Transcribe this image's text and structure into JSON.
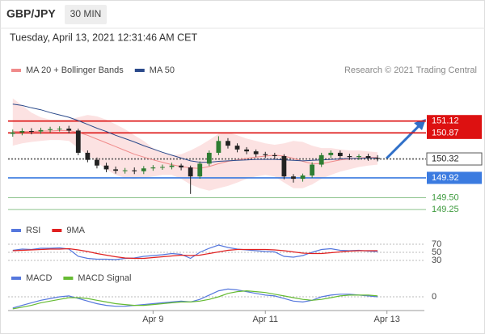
{
  "header": {
    "pair": "GBP/JPY",
    "timeframe": "30 MIN",
    "datetime": "Tuesday, April 13, 2021 12:31:46 AM CET"
  },
  "chart_data": [
    {
      "type": "candlestick",
      "source": "Research © 2021 Trading Central",
      "xlim": [
        -0.5,
        44
      ],
      "ylim": [
        149.03,
        151.97
      ],
      "candle_colors": {
        "up": "#2e7d32",
        "down": "#222222"
      },
      "ohlc": {
        "open": [
          150.85,
          150.88,
          150.91,
          150.9,
          150.93,
          150.95,
          150.96,
          150.92,
          150.45,
          150.3,
          150.18,
          150.1,
          150.07,
          150.08,
          150.06,
          150.12,
          150.14,
          150.15,
          150.18,
          150.14,
          149.95,
          150.22,
          150.45,
          150.7,
          150.6,
          150.52,
          150.48,
          150.42,
          150.4,
          150.38,
          149.95,
          149.9,
          149.97,
          150.2,
          150.4,
          150.45,
          150.38,
          150.36,
          150.38,
          150.34
        ],
        "high": [
          150.94,
          150.97,
          150.97,
          150.98,
          151.0,
          151.01,
          151.02,
          150.96,
          150.5,
          150.35,
          150.24,
          150.16,
          150.13,
          150.14,
          150.17,
          150.19,
          150.2,
          150.24,
          150.22,
          150.18,
          150.27,
          150.5,
          150.8,
          150.76,
          150.65,
          150.57,
          150.52,
          150.47,
          150.45,
          150.42,
          150.0,
          150.01,
          150.25,
          150.45,
          150.5,
          150.5,
          150.43,
          150.42,
          150.43,
          150.4
        ],
        "low": [
          150.79,
          150.82,
          150.84,
          150.85,
          150.88,
          150.9,
          150.86,
          150.4,
          150.25,
          150.12,
          150.04,
          150.01,
          150.01,
          150.0,
          150.0,
          150.07,
          150.09,
          150.1,
          150.08,
          149.58,
          149.9,
          150.17,
          150.4,
          150.54,
          150.46,
          150.42,
          150.36,
          150.34,
          150.32,
          149.89,
          149.82,
          149.84,
          149.92,
          150.15,
          150.34,
          150.32,
          150.3,
          150.3,
          150.28,
          150.27
        ],
        "close": [
          150.88,
          150.91,
          150.9,
          150.93,
          150.95,
          150.96,
          150.92,
          150.45,
          150.3,
          150.18,
          150.1,
          150.07,
          150.08,
          150.06,
          150.12,
          150.14,
          150.15,
          150.18,
          150.14,
          149.95,
          150.22,
          150.45,
          150.7,
          150.6,
          150.52,
          150.48,
          150.42,
          150.4,
          150.38,
          149.95,
          149.9,
          149.97,
          150.2,
          150.4,
          150.45,
          150.38,
          150.36,
          150.38,
          150.34,
          150.32
        ]
      },
      "bands": {
        "color": "#fbd5d5",
        "upper": [
          151.6,
          151.45,
          151.3,
          151.2,
          151.15,
          151.15,
          151.15,
          151.2,
          151.25,
          151.22,
          151.15,
          151.05,
          150.95,
          150.82,
          150.7,
          150.55,
          150.45,
          150.4,
          150.42,
          150.5,
          150.6,
          150.72,
          150.85,
          150.88,
          150.82,
          150.75,
          150.7,
          150.65,
          150.62,
          150.65,
          150.7,
          150.68,
          150.6,
          150.55,
          150.55,
          150.52,
          150.5,
          150.5,
          150.48,
          150.46
        ],
        "lower": [
          150.6,
          150.65,
          150.68,
          150.7,
          150.72,
          150.72,
          150.7,
          150.55,
          150.4,
          150.25,
          150.1,
          149.98,
          149.92,
          149.9,
          149.92,
          149.95,
          149.98,
          149.98,
          149.9,
          149.78,
          149.7,
          149.65,
          149.7,
          149.75,
          149.82,
          149.9,
          149.95,
          149.98,
          149.95,
          149.82,
          149.7,
          149.7,
          149.78,
          149.9,
          149.98,
          150.05,
          150.1,
          150.15,
          150.18,
          150.2
        ]
      },
      "series": [
        {
          "name": "MA 20 + Bollinger Bands",
          "color": "#f08a8a",
          "values": [
            150.9,
            150.9,
            150.9,
            150.91,
            150.91,
            150.92,
            150.92,
            150.88,
            150.82,
            150.74,
            150.66,
            150.58,
            150.5,
            150.42,
            150.36,
            150.3,
            150.25,
            150.2,
            150.16,
            150.13,
            150.12,
            150.16,
            150.22,
            150.27,
            150.3,
            150.33,
            150.36,
            150.38,
            150.4,
            150.38,
            150.33,
            150.27,
            150.22,
            150.22,
            150.26,
            150.3,
            150.32,
            150.34,
            150.35,
            150.35
          ]
        },
        {
          "name": "MA 50",
          "color": "#2b4a8b",
          "values": [
            151.48,
            151.45,
            151.4,
            151.36,
            151.3,
            151.25,
            151.2,
            151.13,
            151.05,
            150.97,
            150.9,
            150.82,
            150.75,
            150.68,
            150.6,
            150.53,
            150.46,
            150.4,
            150.34,
            150.28,
            150.25,
            150.25,
            150.27,
            150.28,
            150.29,
            150.3,
            150.31,
            150.31,
            150.31,
            150.3,
            150.29,
            150.28,
            150.29,
            150.3,
            150.31,
            150.32,
            150.33,
            150.33,
            150.34,
            150.34
          ]
        }
      ],
      "levels": [
        {
          "value": 151.12,
          "label": "151.12",
          "color": "#dd1111",
          "label_style": "filled",
          "dashed": false
        },
        {
          "value": 150.87,
          "label": "150.87",
          "color": "#dd1111",
          "label_style": "filled",
          "dashed": false
        },
        {
          "value": 150.32,
          "label": "150.32",
          "color": "#555555",
          "label_style": "outlined",
          "dashed": true
        },
        {
          "value": 149.92,
          "label": "149.92",
          "color": "#3b7be0",
          "label_style": "filled",
          "dashed": false
        },
        {
          "value": 149.5,
          "label": "149.50",
          "color": "#3c9a3c",
          "label_style": "plain",
          "dashed": false
        },
        {
          "value": 149.25,
          "label": "149.25",
          "color": "#3c9a3c",
          "label_style": "plain",
          "dashed": false
        }
      ]
    },
    {
      "type": "line",
      "xlim": [
        -0.5,
        44
      ],
      "ylim": [
        18,
        82
      ],
      "yticks": [
        30,
        50,
        70
      ],
      "grid": true,
      "series": [
        {
          "name": "RSI",
          "color": "#5577dd",
          "values": [
            55,
            58,
            57,
            60,
            60,
            61,
            58,
            40,
            35,
            33,
            33,
            32,
            35,
            36,
            40,
            42,
            44,
            47,
            45,
            35,
            50,
            60,
            68,
            62,
            58,
            56,
            54,
            52,
            51,
            40,
            38,
            42,
            50,
            57,
            59,
            55,
            54,
            55,
            53,
            52
          ]
        },
        {
          "name": "9MA",
          "color": "#e02020",
          "values": [
            54,
            55,
            56,
            57,
            58,
            58,
            59,
            56,
            52,
            47,
            43,
            39,
            36,
            35,
            35,
            37,
            39,
            41,
            43,
            42,
            43,
            47,
            51,
            55,
            57,
            57,
            57,
            57,
            56,
            54,
            51,
            48,
            47,
            47,
            49,
            51,
            53,
            54,
            54,
            54
          ]
        }
      ]
    },
    {
      "type": "line",
      "xlim": [
        -0.5,
        44
      ],
      "ylim": [
        -0.16,
        0.16
      ],
      "yticks": [
        0
      ],
      "grid": true,
      "xticks": [
        {
          "value": 15,
          "label": "Apr 9"
        },
        {
          "value": 27,
          "label": "Apr 11"
        },
        {
          "value": 40,
          "label": "Apr 13"
        }
      ],
      "series": [
        {
          "name": "MACD",
          "color": "#5577dd",
          "values": [
            -0.13,
            -0.1,
            -0.07,
            -0.04,
            -0.02,
            0.0,
            0.01,
            -0.02,
            -0.05,
            -0.08,
            -0.1,
            -0.11,
            -0.11,
            -0.1,
            -0.09,
            -0.08,
            -0.07,
            -0.06,
            -0.05,
            -0.06,
            -0.03,
            0.02,
            0.07,
            0.09,
            0.08,
            0.06,
            0.04,
            0.02,
            0.01,
            -0.02,
            -0.05,
            -0.06,
            -0.04,
            0.0,
            0.02,
            0.03,
            0.03,
            0.02,
            0.01,
            0.0
          ]
        },
        {
          "name": "MACD Signal",
          "color": "#66bb33",
          "values": [
            -0.14,
            -0.12,
            -0.1,
            -0.07,
            -0.05,
            -0.03,
            -0.01,
            -0.01,
            -0.02,
            -0.04,
            -0.06,
            -0.08,
            -0.09,
            -0.1,
            -0.1,
            -0.09,
            -0.08,
            -0.07,
            -0.06,
            -0.06,
            -0.05,
            -0.03,
            0.0,
            0.04,
            0.06,
            0.07,
            0.06,
            0.05,
            0.03,
            0.01,
            -0.01,
            -0.03,
            -0.04,
            -0.03,
            -0.01,
            0.01,
            0.02,
            0.02,
            0.02,
            0.01
          ]
        }
      ]
    }
  ]
}
